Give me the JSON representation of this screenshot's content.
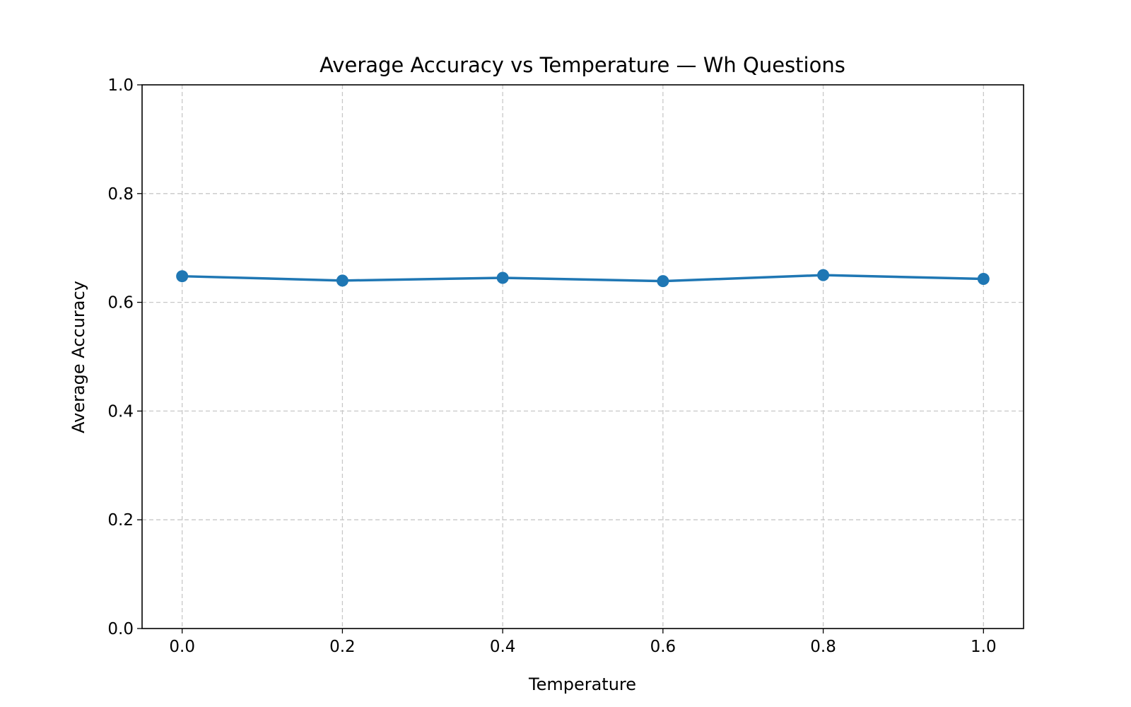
{
  "chart_data": {
    "type": "line",
    "title": "Average Accuracy vs Temperature — Wh Questions",
    "xlabel": "Temperature",
    "ylabel": "Average Accuracy",
    "x": [
      0.0,
      0.2,
      0.4,
      0.6,
      0.8,
      1.0
    ],
    "series": [
      {
        "values": [
          0.648,
          0.64,
          0.645,
          0.639,
          0.65,
          0.643
        ],
        "color": "#1f77b4",
        "marker": "circle"
      }
    ],
    "xlim": [
      -0.05,
      1.05
    ],
    "ylim": [
      0.0,
      1.0
    ],
    "xticks": [
      "0.0",
      "0.2",
      "0.4",
      "0.6",
      "0.8",
      "1.0"
    ],
    "yticks": [
      "0.0",
      "0.2",
      "0.4",
      "0.6",
      "0.8",
      "1.0"
    ],
    "grid": true,
    "grid_style": "dashed"
  }
}
